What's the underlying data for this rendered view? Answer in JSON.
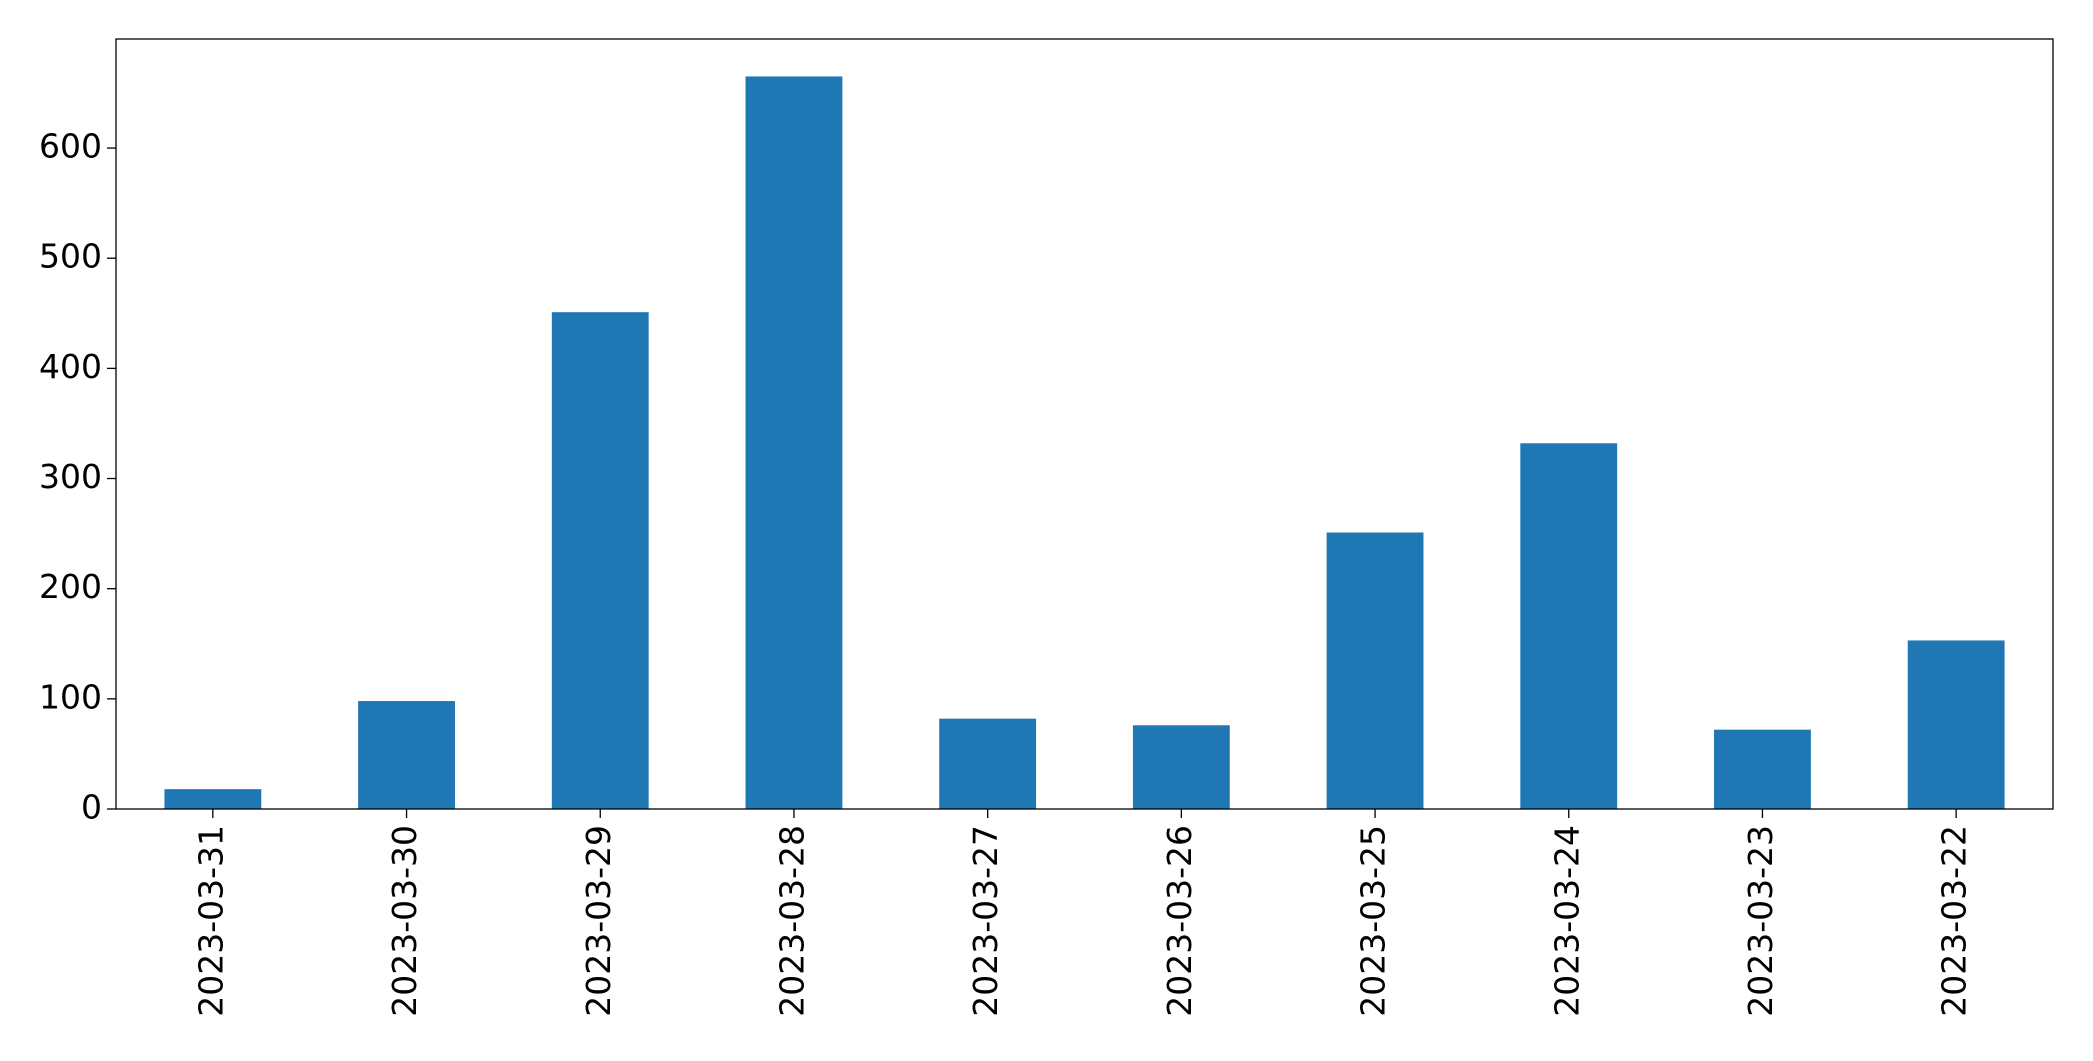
{
  "chart_data": {
    "type": "bar",
    "categories": [
      "2023-03-31",
      "2023-03-30",
      "2023-03-29",
      "2023-03-28",
      "2023-03-27",
      "2023-03-26",
      "2023-03-25",
      "2023-03-24",
      "2023-03-23",
      "2023-03-22"
    ],
    "values": [
      18,
      98,
      451,
      665,
      82,
      76,
      251,
      332,
      72,
      153
    ],
    "color": "#1f77b4",
    "ylim": [
      0,
      699
    ],
    "yticks": [
      0,
      100,
      200,
      300,
      400,
      500,
      600
    ],
    "grid": false
  }
}
